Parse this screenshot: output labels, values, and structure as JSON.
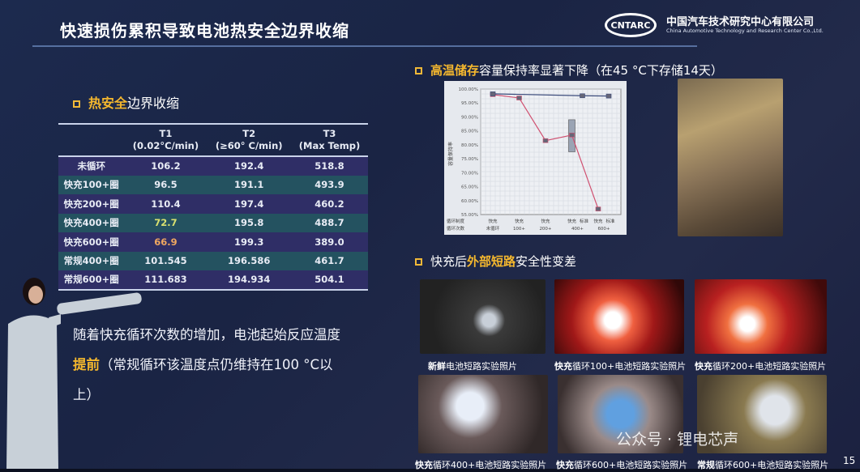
{
  "header": {
    "title": "快速损伤累积导致电池热安全边界收缩",
    "logo_text": "CNTARC",
    "company_cn": "中国汽车技术研究中心有限公司",
    "company_en": "China Automotive Technology and Research Center Co.,Ltd."
  },
  "left": {
    "section_title_hl": "热安全",
    "section_title_rest": "边界收缩",
    "table": {
      "headers": [
        [
          "",
          ""
        ],
        [
          "T1",
          "(0.02°C/min)"
        ],
        [
          "T2",
          "(≥60° C/min)"
        ],
        [
          "T3",
          "(Max Temp)"
        ]
      ],
      "rows": [
        [
          "未循环",
          "106.2",
          "192.4",
          "518.8"
        ],
        [
          "快充100+圈",
          "96.5",
          "191.1",
          "493.9"
        ],
        [
          "快充200+圈",
          "110.4",
          "197.4",
          "460.2"
        ],
        [
          "快充400+圈",
          "72.7",
          "195.8",
          "488.7"
        ],
        [
          "快充600+圈",
          "66.9",
          "199.3",
          "389.0"
        ],
        [
          "常规400+圈",
          "101.545",
          "196.586",
          "461.7"
        ],
        [
          "常规600+圈",
          "111.683",
          "194.934",
          "504.1"
        ]
      ],
      "highlight_colors": {
        "快充400+圈 T1": "#d8e070",
        "快充600+圈 T1": "#f0a860"
      }
    },
    "note_part1": "随着快充循环次数的增加，电池起始反应温度",
    "note_hl": "提前",
    "note_part2": "（常规循环该温度点仍维持在100 °C以上）"
  },
  "right": {
    "storage_title_hl": "高温储存",
    "storage_title_rest": "容量保持率显著下降（在45 °C下存储14天）",
    "short_title_pre": "快充后",
    "short_title_hl": "外部短路",
    "short_title_rest": "安全性变差",
    "photo_captions": [
      {
        "hl": "新鲜",
        "rest": "电池短路实验照片"
      },
      {
        "hl": "快充",
        "rest": "循环100+电池短路实验照片"
      },
      {
        "hl": "快充",
        "rest": "循环200+电池短路实验照片"
      },
      {
        "hl": "快充",
        "rest": "循环400+电池短路实验照片"
      },
      {
        "hl": "快充",
        "rest": "循环600+电池短路实验照片"
      },
      {
        "hl": "常规",
        "rest": "循环600+电池短路实验照片"
      }
    ]
  },
  "chart_data": {
    "type": "line",
    "ylabel": "容量保持率",
    "ylim": [
      55,
      100
    ],
    "yticks": [
      "100.00%",
      "95.00%",
      "90.00%",
      "85.00%",
      "80.00%",
      "75.00%",
      "70.00%",
      "65.00%",
      "60.00%",
      "55.00%"
    ],
    "row_labels": [
      "循环制度",
      "循环次数"
    ],
    "x_groups": [
      {
        "regime": [
          "快充"
        ],
        "count": "未循环"
      },
      {
        "regime": [
          "快充"
        ],
        "count": "100+"
      },
      {
        "regime": [
          "快充"
        ],
        "count": "200+"
      },
      {
        "regime": [
          "快充",
          "标准"
        ],
        "count": "400+"
      },
      {
        "regime": [
          "快充",
          "标准"
        ],
        "count": "600+"
      }
    ],
    "series": [
      {
        "color": "#d05070",
        "points": [
          [
            0,
            98.0
          ],
          [
            1,
            96.8
          ],
          [
            2,
            81.5
          ],
          [
            3,
            83.5
          ],
          [
            4,
            57.0
          ]
        ]
      },
      {
        "color": "#3a4a7a",
        "points": [
          [
            0,
            98.3
          ],
          [
            3.4,
            97.6
          ],
          [
            4.4,
            97.5
          ]
        ]
      }
    ],
    "box": {
      "x": 3,
      "low": 77.5,
      "high": 89.0
    },
    "grid": true
  },
  "watermark": "公众号 · 锂电芯声",
  "page_number": "15"
}
